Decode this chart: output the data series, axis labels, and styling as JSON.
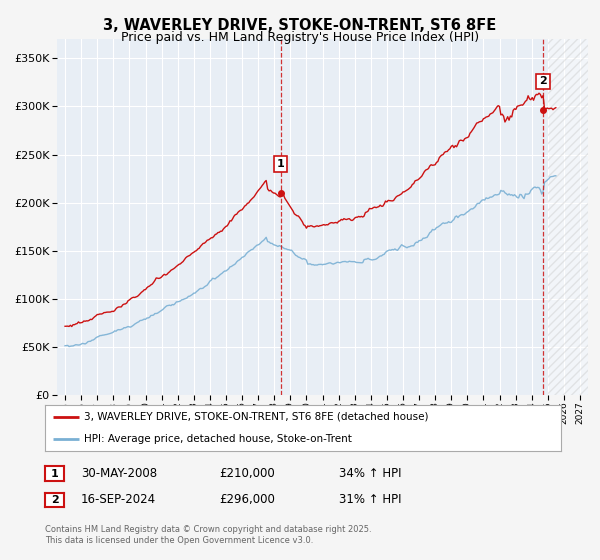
{
  "title": "3, WAVERLEY DRIVE, STOKE-ON-TRENT, ST6 8FE",
  "subtitle": "Price paid vs. HM Land Registry's House Price Index (HPI)",
  "title_fontsize": 10.5,
  "subtitle_fontsize": 9,
  "bg_color": "#f5f5f5",
  "plot_bg_color": "#e8eef5",
  "grid_color": "#ffffff",
  "ylim": [
    0,
    370000
  ],
  "xlim_start": 1994.5,
  "xlim_end": 2027.5,
  "yticks": [
    0,
    50000,
    100000,
    150000,
    200000,
    250000,
    300000,
    350000
  ],
  "ytick_labels": [
    "£0",
    "£50K",
    "£100K",
    "£150K",
    "£200K",
    "£250K",
    "£300K",
    "£350K"
  ],
  "xticks": [
    1995,
    1996,
    1997,
    1998,
    1999,
    2000,
    2001,
    2002,
    2003,
    2004,
    2005,
    2006,
    2007,
    2008,
    2009,
    2010,
    2011,
    2012,
    2013,
    2014,
    2015,
    2016,
    2017,
    2018,
    2019,
    2020,
    2021,
    2022,
    2023,
    2024,
    2025,
    2026,
    2027
  ],
  "red_line_color": "#cc1111",
  "blue_line_color": "#7ab0d4",
  "sale1_x": 2008.41,
  "sale1_y": 210000,
  "sale1_label": "1",
  "sale1_date": "30-MAY-2008",
  "sale1_price": "£210,000",
  "sale1_hpi": "34% ↑ HPI",
  "sale2_x": 2024.71,
  "sale2_y": 296000,
  "sale2_label": "2",
  "sale2_date": "16-SEP-2024",
  "sale2_price": "£296,000",
  "sale2_hpi": "31% ↑ HPI",
  "legend_line1": "3, WAVERLEY DRIVE, STOKE-ON-TRENT, ST6 8FE (detached house)",
  "legend_line2": "HPI: Average price, detached house, Stoke-on-Trent",
  "footer": "Contains HM Land Registry data © Crown copyright and database right 2025.\nThis data is licensed under the Open Government Licence v3.0.",
  "hatch_start": 2025.0
}
